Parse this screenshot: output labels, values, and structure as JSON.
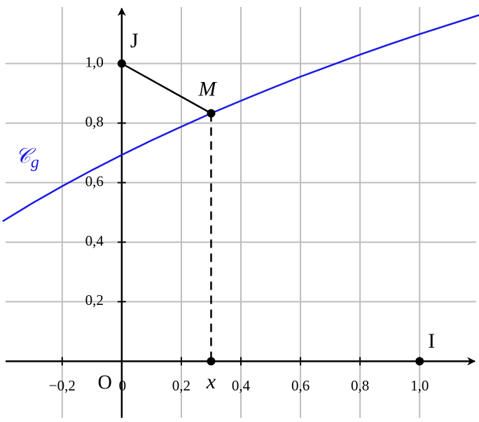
{
  "chart_data": {
    "type": "line",
    "curve_label": {
      "main": "𝒞",
      "sub": "g"
    },
    "x": [
      -0.4,
      -0.3,
      -0.2,
      -0.1,
      0,
      0.1,
      0.2,
      0.3,
      0.4,
      0.5,
      0.6,
      0.7,
      0.8,
      0.9,
      1.0,
      1.1,
      1.2
    ],
    "series": [
      {
        "color": "#1a1ae6",
        "values": [
          0.47,
          0.531,
          0.588,
          0.642,
          0.693,
          0.742,
          0.788,
          0.833,
          0.875,
          0.916,
          0.956,
          0.993,
          1.03,
          1.065,
          1.099,
          1.131,
          1.163
        ]
      }
    ],
    "xlim": [
      -0.39,
      1.19
    ],
    "ylim": [
      -0.19,
      1.19
    ],
    "xticks": [
      {
        "value": -0.2,
        "label": "−0,2"
      },
      0,
      {
        "value": 0.2,
        "label": "0,2"
      },
      {
        "value": 0.4,
        "label": "0,4"
      },
      {
        "value": 0.6,
        "label": "0,6"
      },
      {
        "value": 0.8,
        "label": "0,8"
      },
      {
        "value": 1.0,
        "label": "1,0"
      }
    ],
    "yticks": [
      {
        "value": 0.2,
        "label": "0,2"
      },
      {
        "value": 0.4,
        "label": "0,4"
      },
      {
        "value": 0.6,
        "label": "0,6"
      },
      {
        "value": 0.8,
        "label": "0,8"
      },
      {
        "value": 1.0,
        "label": "1,0"
      }
    ],
    "grid": true,
    "origin_label": "O",
    "points": [
      {
        "label": "J",
        "x": 0,
        "y": 1.0
      },
      {
        "label": "M",
        "x": 0.3,
        "y": 0.833
      },
      {
        "label": "x",
        "x": 0.3,
        "y": 0
      },
      {
        "label": "I",
        "x": 1.0,
        "y": 0
      }
    ]
  }
}
